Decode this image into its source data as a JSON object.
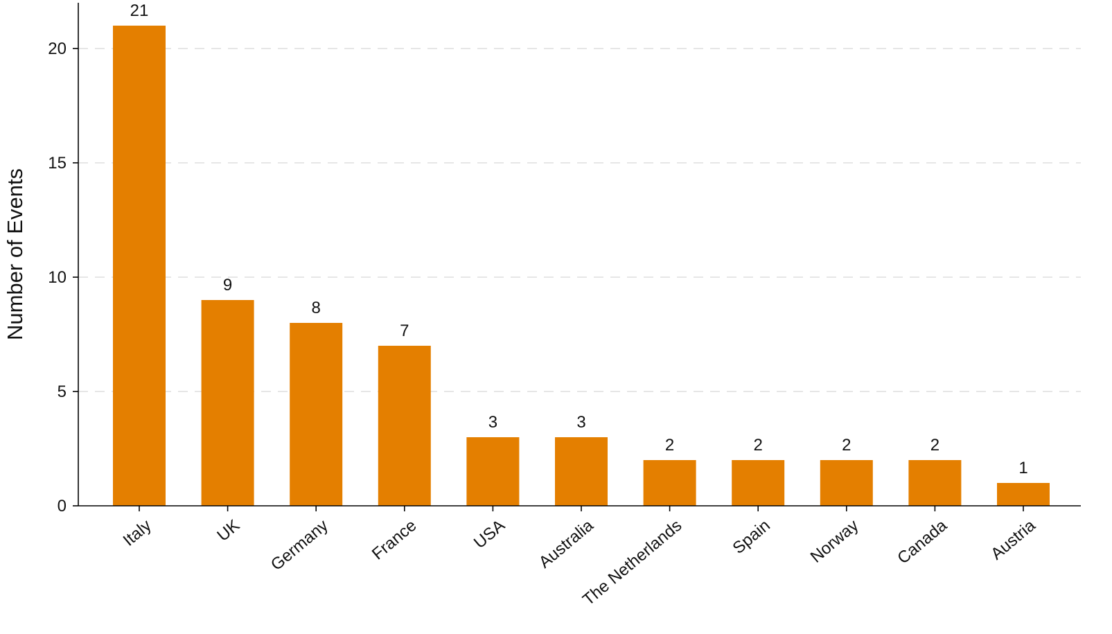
{
  "chart_data": {
    "type": "bar",
    "title": "",
    "xlabel": "",
    "ylabel": "Number of Events",
    "ylim": [
      0,
      22
    ],
    "yticks": [
      0,
      5,
      10,
      15,
      20
    ],
    "grid": "horizontal-dashed",
    "legend": "none",
    "bar_color": "#E47F00",
    "categories": [
      "Italy",
      "UK",
      "Germany",
      "France",
      "USA",
      "Australia",
      "The Netherlands",
      "Spain",
      "Norway",
      "Canada",
      "Austria"
    ],
    "values": [
      21,
      9,
      8,
      7,
      3,
      3,
      2,
      2,
      2,
      2,
      1
    ]
  }
}
